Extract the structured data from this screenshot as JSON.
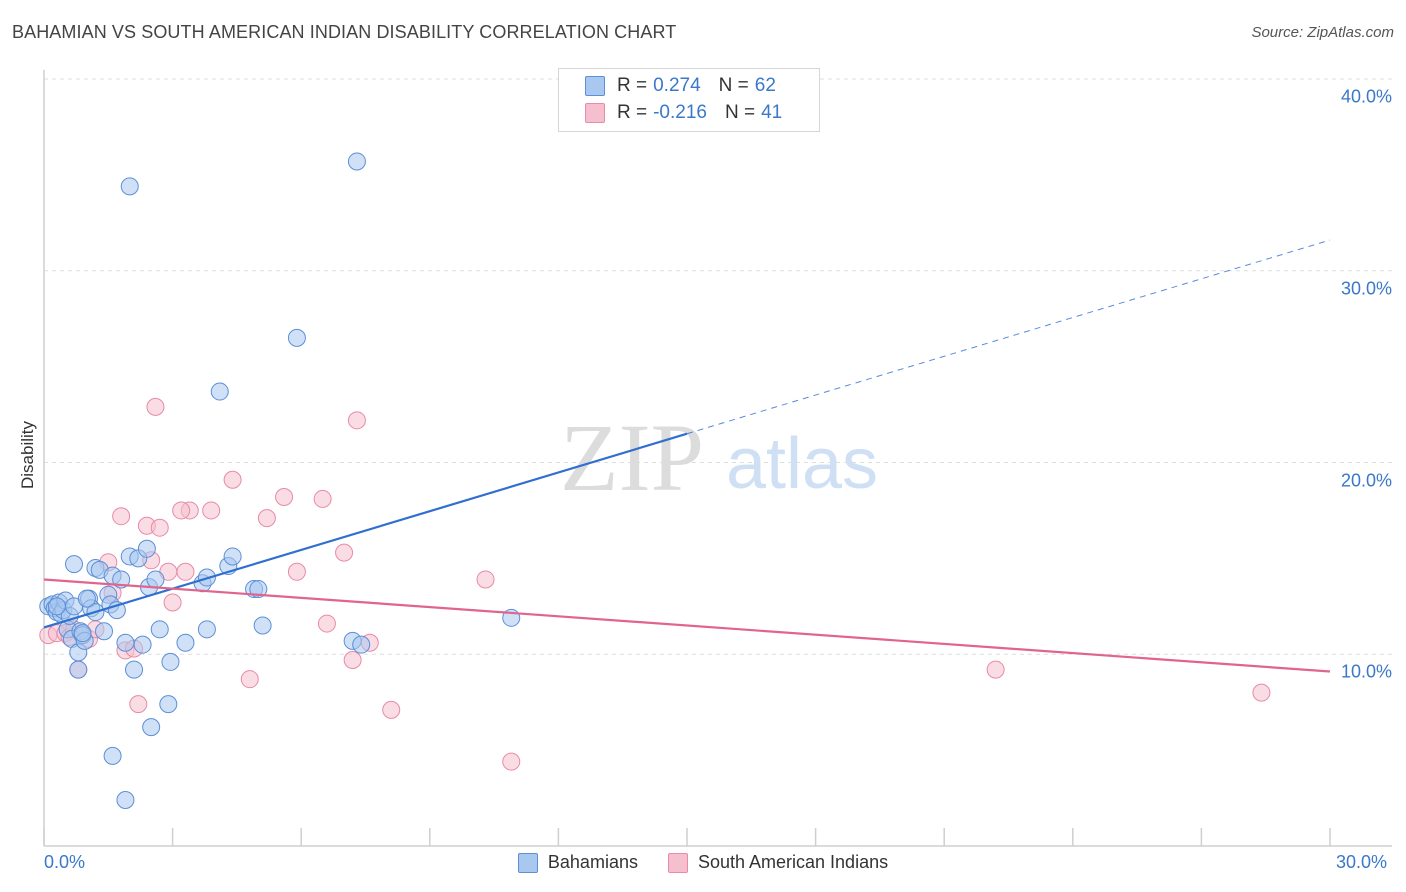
{
  "title": "BAHAMIAN VS SOUTH AMERICAN INDIAN DISABILITY CORRELATION CHART",
  "source": "Source: ZipAtlas.com",
  "watermark": {
    "zip": "ZIP",
    "atlas": "atlas"
  },
  "legend": {
    "r_label": "R =",
    "n_label": "N =",
    "series": [
      {
        "r": "0.274",
        "n": "62"
      },
      {
        "r": "-0.216",
        "n": "41"
      }
    ]
  },
  "bottom_legend": [
    "Bahamians",
    "South American Indians"
  ],
  "colors": {
    "blue_fill": "#a9c8f0",
    "blue_stroke": "#5b8fd6",
    "blue_line": "#2f6fd0",
    "pink_fill": "#f6bfd0",
    "pink_stroke": "#e88aa8",
    "pink_line": "#e0648e",
    "tick_text": "#3a78c9"
  },
  "chart_data": {
    "type": "scatter",
    "title": "BAHAMIAN VS SOUTH AMERICAN INDIAN DISABILITY CORRELATION CHART",
    "xlabel": "",
    "ylabel": "Disability",
    "xlim": [
      0,
      30
    ],
    "ylim": [
      0,
      40
    ],
    "x_tick_labels": [
      "0.0%",
      "30.0%"
    ],
    "y_ticks": [
      10,
      20,
      30,
      40
    ],
    "y_tick_labels": [
      "10.0%",
      "20.0%",
      "30.0%",
      "40.0%"
    ],
    "grid": true,
    "series": [
      {
        "name": "Bahamians",
        "r": 0.274,
        "n": 62,
        "trend": {
          "x0": 0,
          "y0": 11.4,
          "x1": 15,
          "y1": 21.5,
          "dashed_to_x": 30,
          "dashed_to_y": 31.6
        },
        "points": [
          [
            0.1,
            12.5
          ],
          [
            0.2,
            12.6
          ],
          [
            0.25,
            12.4
          ],
          [
            0.3,
            12.2
          ],
          [
            0.35,
            12.7
          ],
          [
            0.4,
            12.1
          ],
          [
            0.45,
            12.3
          ],
          [
            0.5,
            12.8
          ],
          [
            0.55,
            11.3
          ],
          [
            0.6,
            12.0
          ],
          [
            0.65,
            10.8
          ],
          [
            0.7,
            14.7
          ],
          [
            0.7,
            12.5
          ],
          [
            0.8,
            10.1
          ],
          [
            0.8,
            9.2
          ],
          [
            0.85,
            11.2
          ],
          [
            0.9,
            11.0
          ],
          [
            0.95,
            10.7
          ],
          [
            1.05,
            12.9
          ],
          [
            1.1,
            12.4
          ],
          [
            1.2,
            12.2
          ],
          [
            1.2,
            14.5
          ],
          [
            1.3,
            14.4
          ],
          [
            1.4,
            11.2
          ],
          [
            1.5,
            13.1
          ],
          [
            1.55,
            12.6
          ],
          [
            1.6,
            14.1
          ],
          [
            1.7,
            12.3
          ],
          [
            1.8,
            13.9
          ],
          [
            1.9,
            10.6
          ],
          [
            2.0,
            15.1
          ],
          [
            2.1,
            9.2
          ],
          [
            2.2,
            15.0
          ],
          [
            2.3,
            10.5
          ],
          [
            2.4,
            15.5
          ],
          [
            2.45,
            13.5
          ],
          [
            2.5,
            6.2
          ],
          [
            2.6,
            13.9
          ],
          [
            2.7,
            11.3
          ],
          [
            2.9,
            7.4
          ],
          [
            2.95,
            9.6
          ],
          [
            3.3,
            10.6
          ],
          [
            3.7,
            13.7
          ],
          [
            3.8,
            14.0
          ],
          [
            3.8,
            11.3
          ],
          [
            4.1,
            23.7
          ],
          [
            4.3,
            14.6
          ],
          [
            4.4,
            15.1
          ],
          [
            4.9,
            13.4
          ],
          [
            5.0,
            13.4
          ],
          [
            5.1,
            11.5
          ],
          [
            5.9,
            26.5
          ],
          [
            7.2,
            10.7
          ],
          [
            7.4,
            10.5
          ],
          [
            10.9,
            11.9
          ],
          [
            7.3,
            35.7
          ],
          [
            2.0,
            34.4
          ],
          [
            1.6,
            4.7
          ],
          [
            1.9,
            2.4
          ],
          [
            0.9,
            11.1
          ],
          [
            0.3,
            12.5
          ],
          [
            1.0,
            12.9
          ]
        ]
      },
      {
        "name": "South American Indians",
        "r": -0.216,
        "n": 41,
        "trend": {
          "x0": 0,
          "y0": 13.9,
          "x1": 30,
          "y1": 9.1
        },
        "points": [
          [
            0.1,
            11.0
          ],
          [
            0.3,
            11.1
          ],
          [
            0.5,
            11.1
          ],
          [
            0.6,
            10.9
          ],
          [
            0.7,
            11.3
          ],
          [
            0.8,
            9.2
          ],
          [
            0.9,
            11.0
          ],
          [
            1.05,
            10.8
          ],
          [
            1.2,
            11.3
          ],
          [
            1.5,
            14.8
          ],
          [
            1.6,
            13.2
          ],
          [
            1.8,
            17.2
          ],
          [
            1.9,
            10.2
          ],
          [
            2.1,
            10.3
          ],
          [
            2.2,
            7.4
          ],
          [
            2.4,
            16.7
          ],
          [
            2.5,
            14.9
          ],
          [
            2.6,
            22.9
          ],
          [
            2.7,
            16.6
          ],
          [
            2.9,
            14.3
          ],
          [
            3.0,
            12.7
          ],
          [
            3.3,
            14.3
          ],
          [
            3.4,
            17.5
          ],
          [
            3.9,
            17.5
          ],
          [
            4.4,
            19.1
          ],
          [
            4.8,
            8.7
          ],
          [
            5.2,
            17.1
          ],
          [
            5.6,
            18.2
          ],
          [
            5.9,
            14.3
          ],
          [
            6.5,
            18.1
          ],
          [
            6.6,
            11.6
          ],
          [
            7.0,
            15.3
          ],
          [
            7.2,
            9.7
          ],
          [
            7.3,
            22.2
          ],
          [
            7.6,
            10.6
          ],
          [
            8.1,
            7.1
          ],
          [
            10.3,
            13.9
          ],
          [
            10.9,
            4.4
          ],
          [
            22.2,
            9.2
          ],
          [
            28.4,
            8.0
          ],
          [
            3.2,
            17.5
          ]
        ]
      }
    ]
  }
}
